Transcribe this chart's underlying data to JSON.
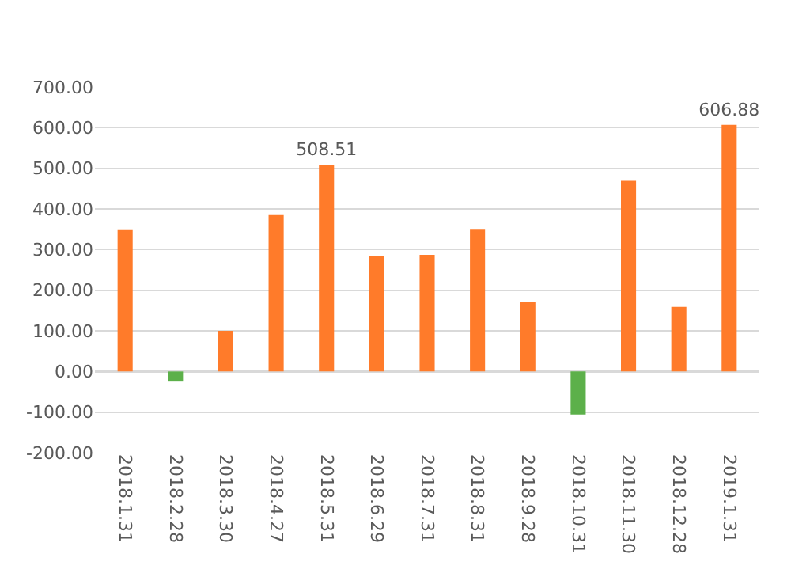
{
  "chart_data": {
    "type": "bar",
    "categories": [
      "2018.1.31",
      "2018.2.28",
      "2018.3.30",
      "2018.4.27",
      "2018.5.31",
      "2018.6.29",
      "2018.7.31",
      "2018.8.31",
      "2018.9.28",
      "2018.10.31",
      "2018.11.30",
      "2018.12.28",
      "2019.1.31"
    ],
    "values": [
      350,
      -25,
      100,
      385,
      508.51,
      283,
      287,
      351,
      172,
      -106,
      469,
      159,
      606.88
    ],
    "colors": [
      "#ff7b2a",
      "#5cb04a",
      "#ff7b2a",
      "#ff7b2a",
      "#ff7b2a",
      "#ff7b2a",
      "#ff7b2a",
      "#ff7b2a",
      "#ff7b2a",
      "#5cb04a",
      "#ff7b2a",
      "#ff7b2a",
      "#ff7b2a"
    ],
    "value_labels": [
      null,
      null,
      null,
      null,
      "508.51",
      null,
      null,
      null,
      null,
      null,
      null,
      null,
      "606.88"
    ],
    "ylim": [
      -200,
      700
    ],
    "yticks": [
      {
        "value": -200,
        "label": "-200.00"
      },
      {
        "value": -100,
        "label": "-100.00"
      },
      {
        "value": 0,
        "label": "0.00"
      },
      {
        "value": 100,
        "label": "100.00"
      },
      {
        "value": 200,
        "label": "200.00"
      },
      {
        "value": 300,
        "label": "300.00"
      },
      {
        "value": 400,
        "label": "400.00"
      },
      {
        "value": 500,
        "label": "500.00"
      },
      {
        "value": 600,
        "label": "600.00"
      },
      {
        "value": 700,
        "label": "700.00"
      }
    ],
    "grid": "y",
    "legend": false
  }
}
